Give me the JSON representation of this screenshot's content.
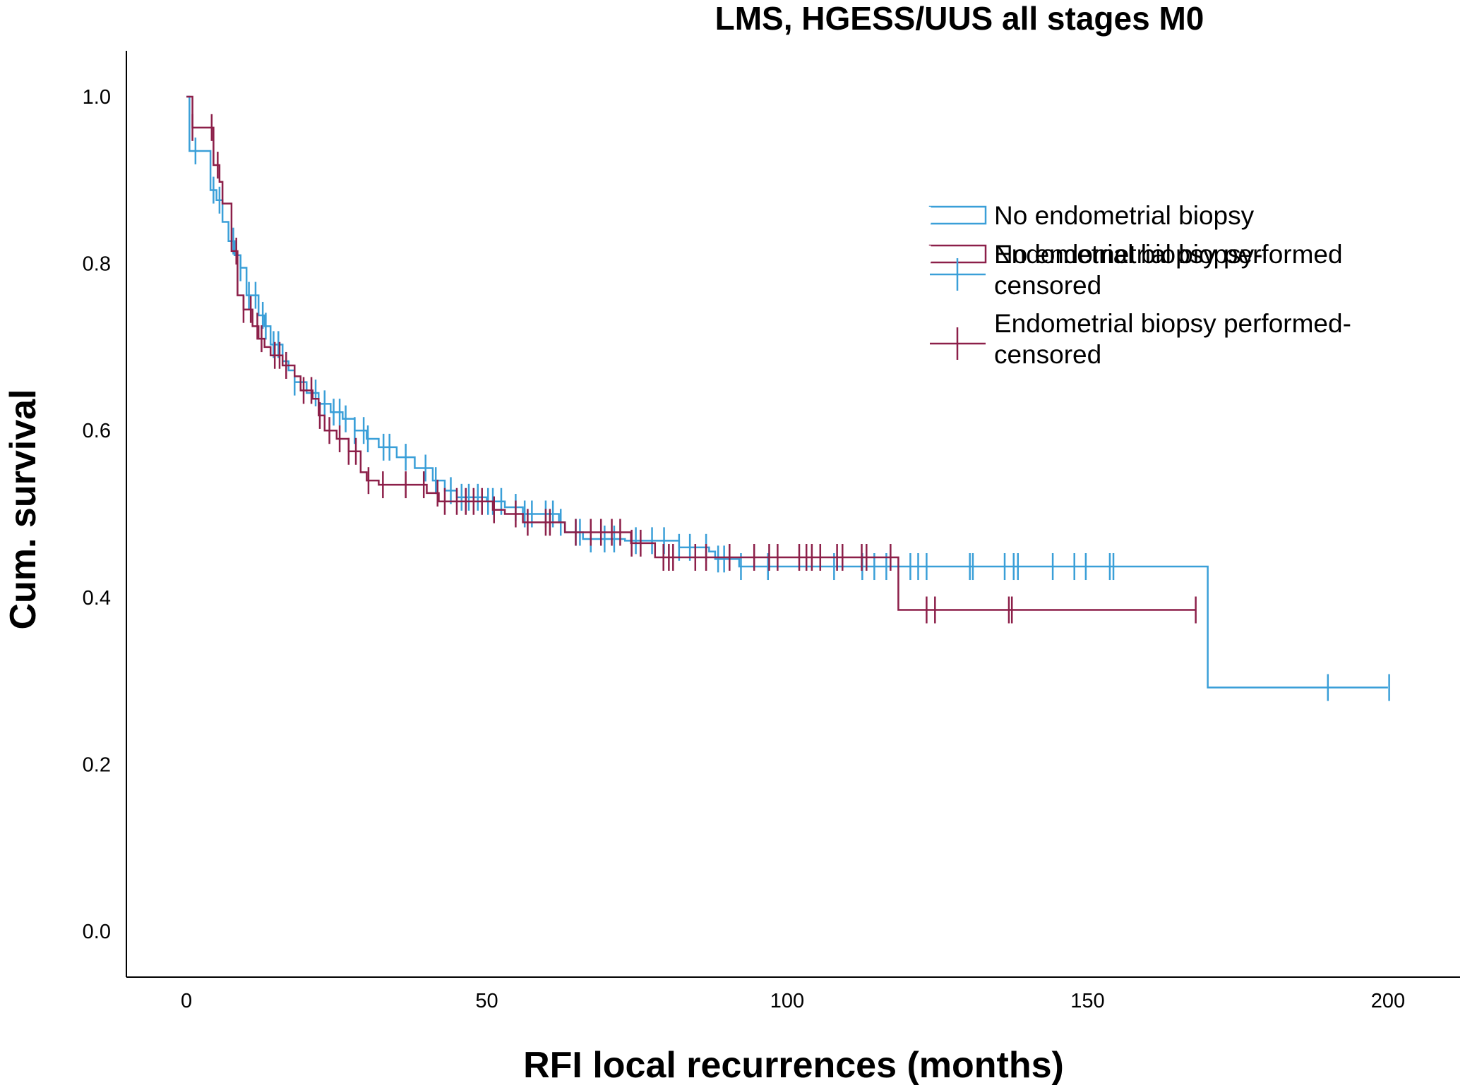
{
  "chart_data": {
    "type": "line",
    "subtype": "kaplan-meier-step",
    "title": "LMS, HGESS/UUS all stages M0",
    "xlabel": "RFI local recurrences (months)",
    "ylabel": "Cum. survival",
    "xlim": [
      -10,
      212
    ],
    "ylim": [
      -0.055,
      1.055
    ],
    "xticks": [
      0,
      50,
      100,
      150,
      200
    ],
    "xtick_labels": [
      "0",
      "50",
      "100",
      "150",
      "200"
    ],
    "yticks": [
      0.0,
      0.2,
      0.4,
      0.6,
      0.8,
      1.0
    ],
    "ytick_labels": [
      "0.0",
      "0.2",
      "0.4",
      "0.6",
      "0.8",
      "1.0"
    ],
    "grid": false,
    "legend_position": "top-right",
    "series": [
      {
        "name": "No endometrial biopsy",
        "censored_name": "No endometrial biopsy-censored",
        "color": "#3a9fd8",
        "start_y": 1.0,
        "steps": [
          [
            0.5,
            0.935
          ],
          [
            4,
            0.888
          ],
          [
            5,
            0.876
          ],
          [
            6,
            0.85
          ],
          [
            7,
            0.827
          ],
          [
            8,
            0.81
          ],
          [
            9,
            0.795
          ],
          [
            10,
            0.762
          ],
          [
            12,
            0.738
          ],
          [
            13,
            0.725
          ],
          [
            14,
            0.703
          ],
          [
            16,
            0.683
          ],
          [
            17,
            0.672
          ],
          [
            18,
            0.658
          ],
          [
            20,
            0.645
          ],
          [
            22,
            0.632
          ],
          [
            24,
            0.622
          ],
          [
            26,
            0.614
          ],
          [
            28,
            0.6
          ],
          [
            30,
            0.59
          ],
          [
            32,
            0.58
          ],
          [
            35,
            0.568
          ],
          [
            38,
            0.555
          ],
          [
            41,
            0.54
          ],
          [
            43,
            0.528
          ],
          [
            45,
            0.52
          ],
          [
            50,
            0.515
          ],
          [
            53,
            0.508
          ],
          [
            56,
            0.5
          ],
          [
            62,
            0.49
          ],
          [
            63,
            0.478
          ],
          [
            66,
            0.47
          ],
          [
            73,
            0.468
          ],
          [
            82,
            0.46
          ],
          [
            87,
            0.455
          ],
          [
            88,
            0.446
          ],
          [
            92,
            0.437
          ],
          [
            170,
            0.292
          ]
        ],
        "end_x": 200,
        "censored": [
          1.5,
          4.5,
          5.5,
          7.8,
          9,
          10.4,
          11.5,
          12.7,
          13.2,
          14.5,
          15.3,
          18,
          21.5,
          23,
          24.5,
          25.5,
          26.5,
          28,
          29.5,
          30.2,
          32.8,
          33.8,
          36.5,
          39.8,
          41.5,
          44,
          45.8,
          47,
          48.5,
          50.2,
          51,
          52.4,
          54.8,
          56.3,
          57.5,
          59.8,
          61,
          62.3,
          64.8,
          65.5,
          67.3,
          69.6,
          71.2,
          74.8,
          77.5,
          79.5,
          82,
          83.8,
          86.5,
          88.5,
          89.5,
          92.3,
          96.8,
          107.8,
          112.5,
          114.5,
          116.5,
          120.5,
          121.8,
          123.2,
          130.4,
          130.9,
          136.2,
          137.7,
          138.4,
          144.2,
          147.8,
          149.7,
          153.7,
          154.3,
          190,
          200.2
        ]
      },
      {
        "name": "Endometrial biopsy performed",
        "censored_name": "Endometrial biopsy performed-censored",
        "color": "#8c1f49",
        "start_y": 1.0,
        "steps": [
          [
            1,
            0.963
          ],
          [
            4.5,
            0.918
          ],
          [
            5.5,
            0.898
          ],
          [
            6,
            0.872
          ],
          [
            7.5,
            0.815
          ],
          [
            8.5,
            0.762
          ],
          [
            9.5,
            0.745
          ],
          [
            11,
            0.725
          ],
          [
            12,
            0.71
          ],
          [
            13,
            0.7
          ],
          [
            14,
            0.69
          ],
          [
            16,
            0.678
          ],
          [
            18,
            0.665
          ],
          [
            19,
            0.648
          ],
          [
            21,
            0.638
          ],
          [
            22,
            0.618
          ],
          [
            23,
            0.6
          ],
          [
            25,
            0.59
          ],
          [
            27,
            0.575
          ],
          [
            29,
            0.55
          ],
          [
            30,
            0.54
          ],
          [
            32,
            0.535
          ],
          [
            40,
            0.525
          ],
          [
            42,
            0.515
          ],
          [
            51,
            0.505
          ],
          [
            53,
            0.5
          ],
          [
            56,
            0.49
          ],
          [
            63,
            0.478
          ],
          [
            74,
            0.465
          ],
          [
            78,
            0.448
          ],
          [
            118.5,
            0.385
          ]
        ],
        "end_x": 168,
        "censored": [
          1,
          4.2,
          5.2,
          8.3,
          9.5,
          10.7,
          11.8,
          12.5,
          14.7,
          15.5,
          16.6,
          19.5,
          20.8,
          22.2,
          23.8,
          25.5,
          27,
          28.2,
          30.3,
          32.7,
          36.5,
          39.5,
          41.8,
          43,
          45,
          46.5,
          47.8,
          49.2,
          51.2,
          54.8,
          56.8,
          59.8,
          60.5,
          64.8,
          67.3,
          69,
          70.8,
          72.2,
          74.1,
          75.6,
          79.4,
          80.3,
          81,
          84.7,
          86.5,
          90.4,
          94.5,
          97,
          98.4,
          102,
          103.2,
          104.1,
          105.5,
          108.3,
          109.2,
          112.4,
          113.2,
          117.2,
          123.2,
          124.6,
          136.9,
          137.4,
          168
        ]
      }
    ]
  },
  "legend": {
    "items": [
      {
        "kind": "line",
        "series": 0,
        "lines": [
          "No endometrial biopsy"
        ]
      },
      {
        "kind": "line",
        "series": 1,
        "lines": [
          "Endometrial biopsy performed"
        ]
      },
      {
        "kind": "censor",
        "series": 0,
        "lines": [
          "No endometrial biopsy-",
          "censored"
        ]
      },
      {
        "kind": "censor",
        "series": 1,
        "lines": [
          "Endometrial biopsy performed-",
          "censored"
        ]
      }
    ]
  }
}
